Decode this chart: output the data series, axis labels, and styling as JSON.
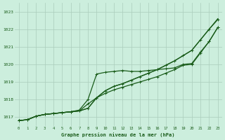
{
  "title": "Graphe pression niveau de la mer (hPa)",
  "background_color": "#cceedd",
  "grid_color": "#aaccbb",
  "line_color": "#1a5c1a",
  "xlim": [
    -0.5,
    23.5
  ],
  "ylim": [
    1016.5,
    1023.5
  ],
  "yticks": [
    1017,
    1018,
    1019,
    1020,
    1021,
    1022,
    1023
  ],
  "xticks": [
    0,
    1,
    2,
    3,
    4,
    5,
    6,
    7,
    8,
    9,
    10,
    11,
    12,
    13,
    14,
    15,
    16,
    17,
    18,
    19,
    20,
    21,
    22,
    23
  ],
  "series": [
    {
      "y": [
        1016.8,
        1016.85,
        1017.05,
        1017.15,
        1017.2,
        1017.25,
        1017.3,
        1017.35,
        1017.5,
        1018.1,
        1018.5,
        1018.75,
        1018.9,
        1019.1,
        1019.3,
        1019.5,
        1019.7,
        1019.95,
        1020.2,
        1020.5,
        1020.8,
        1021.4,
        1022.0,
        1022.6
      ],
      "marker": false,
      "lw": 0.9
    },
    {
      "y": [
        1016.8,
        1016.85,
        1017.05,
        1017.15,
        1017.2,
        1017.25,
        1017.3,
        1017.35,
        1017.5,
        1018.1,
        1018.5,
        1018.75,
        1018.9,
        1019.1,
        1019.3,
        1019.5,
        1019.7,
        1019.95,
        1020.2,
        1020.5,
        1020.8,
        1021.4,
        1022.0,
        1022.55
      ],
      "marker": true,
      "lw": 0.9
    },
    {
      "y": [
        1016.8,
        1016.85,
        1017.05,
        1017.15,
        1017.2,
        1017.25,
        1017.3,
        1017.35,
        1017.75,
        1018.1,
        1018.35,
        1018.55,
        1018.7,
        1018.85,
        1019.0,
        1019.15,
        1019.3,
        1019.5,
        1019.7,
        1019.95,
        1020.0,
        1020.65,
        1021.3,
        1022.1
      ],
      "marker": true,
      "lw": 0.9
    },
    {
      "y": [
        1016.8,
        1016.85,
        1017.05,
        1017.15,
        1017.2,
        1017.25,
        1017.3,
        1017.4,
        1018.0,
        1019.45,
        1019.55,
        1019.6,
        1019.65,
        1019.6,
        1019.6,
        1019.65,
        1019.7,
        1019.75,
        1019.8,
        1020.0,
        1020.05,
        1020.7,
        1021.3,
        1022.1
      ],
      "marker": true,
      "lw": 0.9
    }
  ]
}
